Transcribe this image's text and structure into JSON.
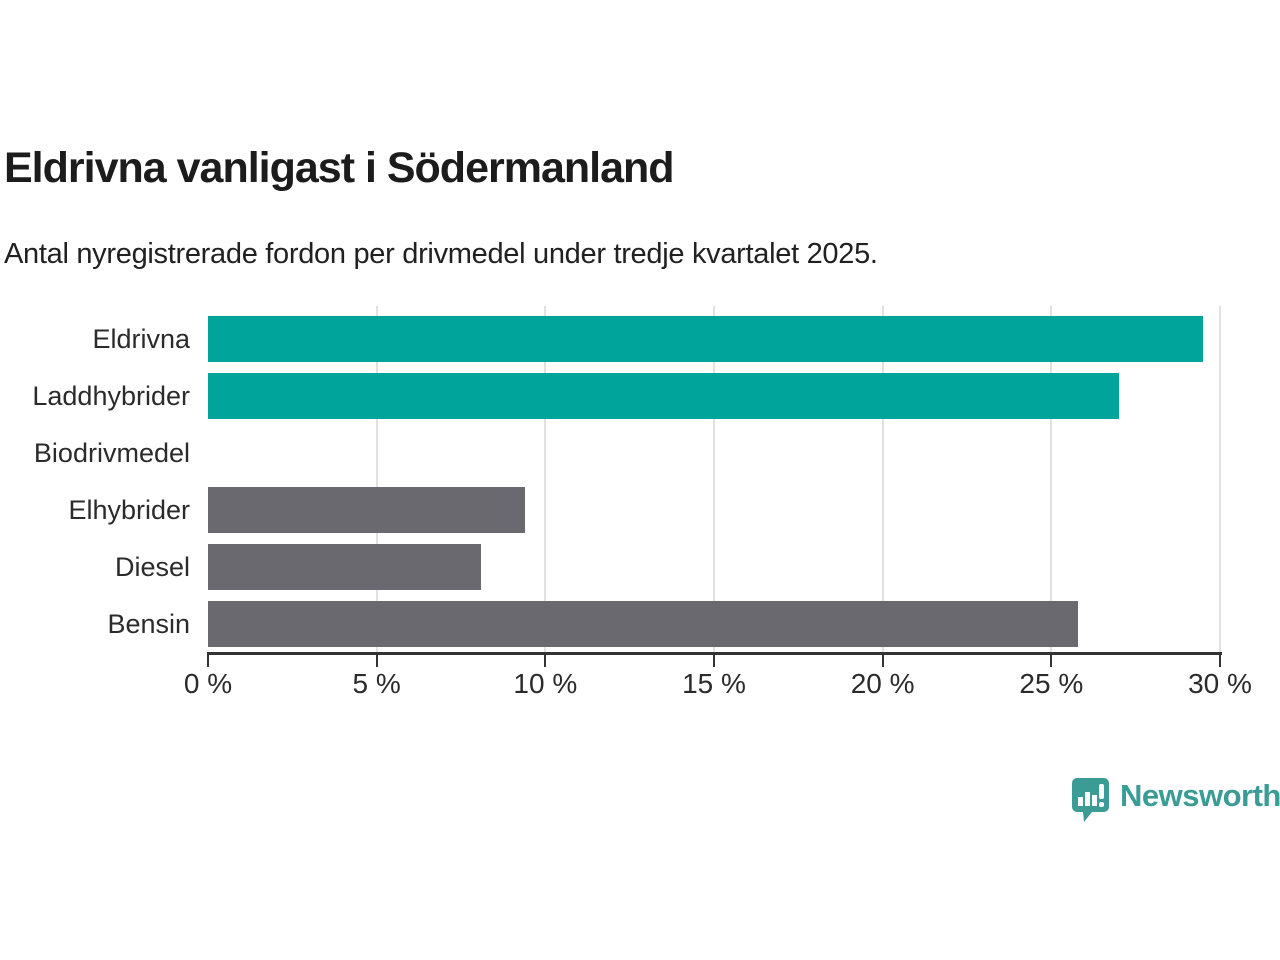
{
  "header": {
    "title": "Eldrivna vanligast i Södermanland",
    "subtitle": "Antal nyregistrerade fordon per drivmedel under tredje kvartalet 2025."
  },
  "chart_data": {
    "type": "bar",
    "orientation": "horizontal",
    "title": "Eldrivna vanligast i Södermanland",
    "subtitle": "Antal nyregistrerade fordon per drivmedel under tredje kvartalet 2025.",
    "categories": [
      "Eldrivna",
      "Laddhybrider",
      "Biodrivmedel",
      "Elhybrider",
      "Diesel",
      "Bensin"
    ],
    "values": [
      29.5,
      27.0,
      0,
      9.4,
      8.1,
      25.8
    ],
    "unit": "%",
    "xlim": [
      0,
      30
    ],
    "x_ticks": [
      0,
      5,
      10,
      15,
      20,
      25,
      30
    ],
    "x_tick_labels": [
      "0 %",
      "5 %",
      "10 %",
      "15 %",
      "20 %",
      "25 %",
      "30 %"
    ],
    "bar_colors": [
      "#00a49b",
      "#00a49b",
      "#6a696f",
      "#6a696f",
      "#6a696f",
      "#6a696f"
    ],
    "colors": {
      "accent": "#00a49b",
      "muted": "#6a696f"
    },
    "grid": "vertical-gridlines-on",
    "legend": "none"
  },
  "footer": {
    "brand": "Newsworthy",
    "brand_color": "#3b9c95",
    "brand_icon": "speech-bubble-bar-chart"
  }
}
